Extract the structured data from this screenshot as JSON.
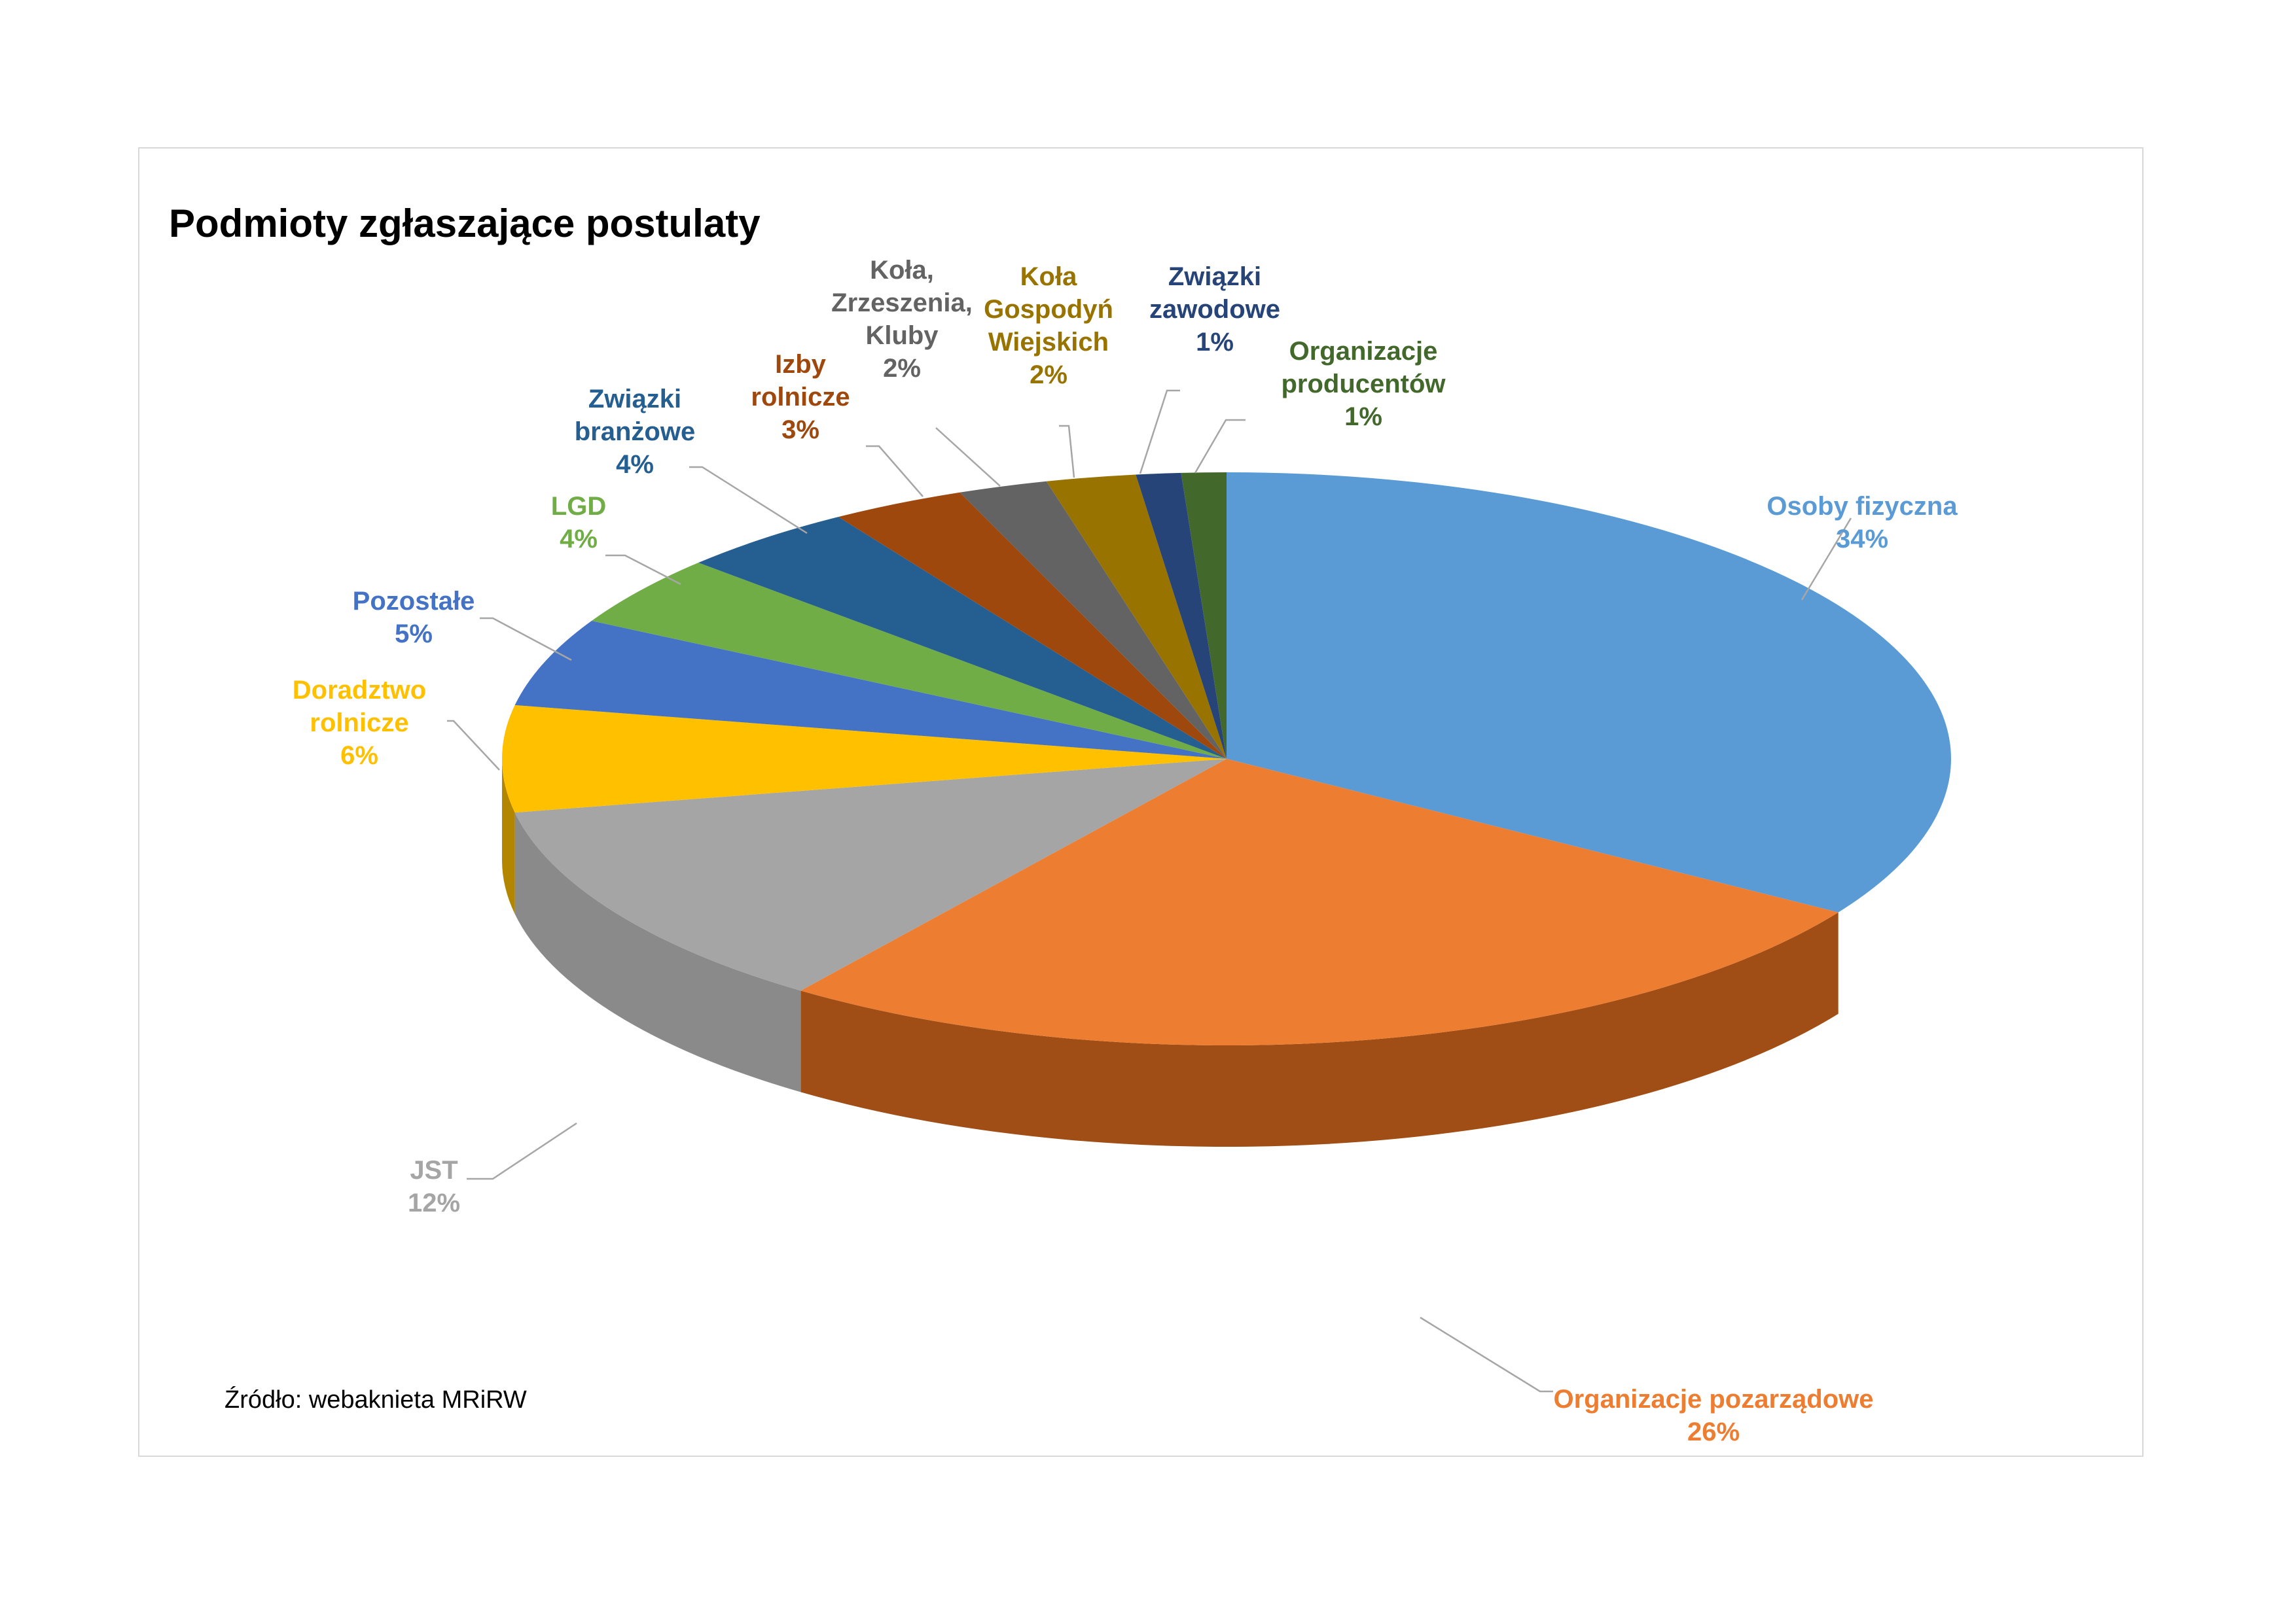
{
  "chart_data": {
    "type": "pie",
    "title": "Podmioty zgłaszające postulaty",
    "source": "Źródło: webaknieta MRiRW",
    "slices": [
      {
        "label": [
          "Osoby fizyczna"
        ],
        "pct_label": "34%",
        "value": 34,
        "color": "#5b9bd5",
        "side_color": "#2e5a82"
      },
      {
        "label": [
          "Organizacje pozarządowe"
        ],
        "pct_label": "26%",
        "value": 26,
        "color": "#ed7d31",
        "side_color": "#a04e16"
      },
      {
        "label": [
          "JST"
        ],
        "pct_label": "12%",
        "value": 12,
        "color": "#a5a5a5",
        "side_color": "#8a8a8a"
      },
      {
        "label": [
          "Doradztwo",
          "rolnicze"
        ],
        "pct_label": "6%",
        "value": 6,
        "color": "#ffc000",
        "side_color": "#b38600"
      },
      {
        "label": [
          "Pozostałe"
        ],
        "pct_label": "5%",
        "value": 5,
        "color": "#4472c4",
        "side_color": "#2b4c86"
      },
      {
        "label": [
          "LGD"
        ],
        "pct_label": "4%",
        "value": 4,
        "color": "#70ad47",
        "side_color": "#4b7a2e"
      },
      {
        "label": [
          "Związki",
          "branżowe"
        ],
        "pct_label": "4%",
        "value": 4,
        "color": "#255e91",
        "side_color": "#163c5e"
      },
      {
        "label": [
          "Izby",
          "rolnicze"
        ],
        "pct_label": "3%",
        "value": 3,
        "color": "#9e480e",
        "side_color": "#652d08"
      },
      {
        "label": [
          "Koła,",
          "Zrzeszenia,",
          "Kluby"
        ],
        "pct_label": "2%",
        "value": 2,
        "color": "#636363",
        "side_color": "#404040"
      },
      {
        "label": [
          "Koła",
          "Gospodyń",
          "Wiejskich"
        ],
        "pct_label": "2%",
        "value": 2,
        "color": "#997300",
        "side_color": "#634a00"
      },
      {
        "label": [
          "Związki",
          "zawodowe"
        ],
        "pct_label": "1%",
        "value": 1,
        "color": "#264478",
        "side_color": "#172a4b"
      },
      {
        "label": [
          "Organizacje",
          "producentów"
        ],
        "pct_label": "1%",
        "value": 1,
        "color": "#43682b",
        "side_color": "#2a421b"
      }
    ]
  }
}
